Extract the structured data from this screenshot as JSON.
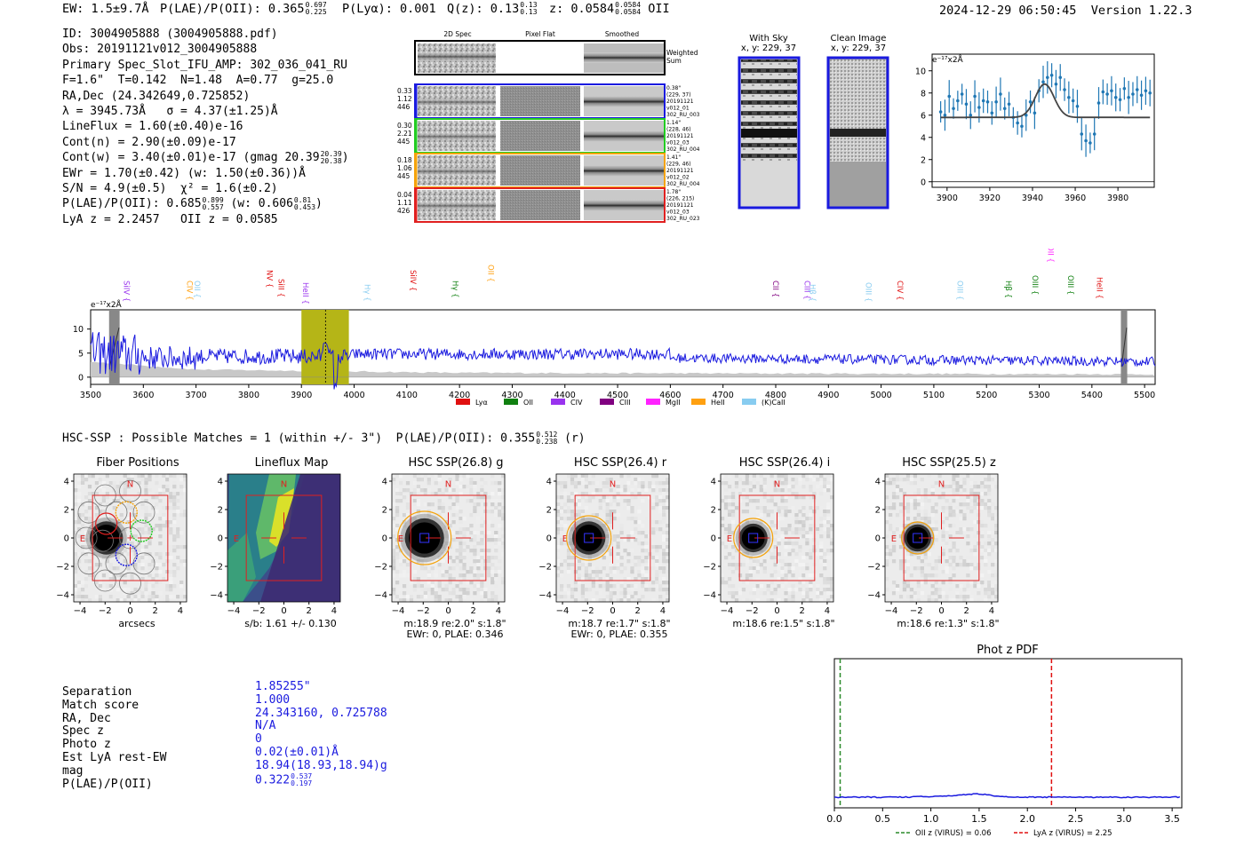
{
  "header": {
    "ew": "EW: 1.5±9.7Å",
    "plae_label": "P(LAE)/P(OII): 0.365",
    "plae_sup": "0.697",
    "plae_sub": "0.225",
    "plya": "P(Lyα): 0.001",
    "qz_label": "Q(z): 0.13",
    "qz_sup": "0.13",
    "qz_sub": "0.13",
    "z_label": "z: 0.0584",
    "z_sup": "0.0584",
    "z_sub": "0.0584",
    "z_line": "OII",
    "timestamp": "2024-12-29 06:50:45",
    "version": "Version 1.22.3"
  },
  "info": {
    "l1": "ID: 3004905888 (3004905888.pdf)",
    "l2": "Obs: 20191121v012_3004905888",
    "l3": "Primary Spec_Slot_IFU_AMP: 302_036_041_RU",
    "l4": "F=1.6\"  T=0.142  N=1.48  A=0.77  g=25.0",
    "l5": "RA,Dec (24.342649,0.725852)",
    "l6": "λ = 3945.73Å   σ = 4.37(±1.25)Å",
    "l7": "LineFlux = 1.60(±0.40)e-16",
    "l8": "Cont(n) = 2.90(±0.09)e-17",
    "l9": "Cont(w) = 3.40(±0.01)e-17 (gmag 20.39",
    "l9_sup": "20.39",
    "l9_sub": "20.38",
    "l9_end": ")",
    "l10": "EWr = 1.70(±0.42) (w: 1.50(±0.36))Å",
    "l11": "S/N = 4.9(±0.5)  χ² = 1.6(±0.2)",
    "l12": "P(LAE)/P(OII): 0.685",
    "l12_sup": "0.899",
    "l12_sub": "0.557",
    "l12_mid": " (w: 0.606",
    "l12_sup2": "0.81",
    "l12_sub2": "0.453",
    "l12_end": ")",
    "l13": "LyA z = 2.2457   OII z = 0.0585"
  },
  "cutouts": {
    "col_titles": [
      "2D Spec",
      "Pixel Flat",
      "Smoothed"
    ],
    "weighted_sum": "Weighted Sum",
    "rows": [
      {
        "left": [
          "0.33",
          "1.12",
          "446"
        ],
        "right": [
          "0.38\"",
          "(229, 37)",
          "20191121",
          "v012_01",
          "302_RU_003"
        ],
        "color": "#1a1adf"
      },
      {
        "left": [
          "0.30",
          "2.21",
          "445"
        ],
        "right": [
          "1.14\"",
          "(228, 46)",
          "20191121",
          "v012_03",
          "302_RU_004"
        ],
        "color": "#22cc22"
      },
      {
        "left": [
          "0.18",
          "1.06",
          "445"
        ],
        "right": [
          "1.41\"",
          "(229, 46)",
          "20191121",
          "v012_02",
          "302_RU_004"
        ],
        "color": "#f4a30c"
      },
      {
        "left": [
          "0.04",
          "1.11",
          "426"
        ],
        "right": [
          "1.78\"",
          "(226, 215)",
          "20191121",
          "v012_03",
          "302_RU_023"
        ],
        "color": "#e02020"
      }
    ]
  },
  "sky": {
    "with_sky_title": "With Sky",
    "with_sky_xy": "x, y: 229, 37",
    "clean_title": "Clean Image",
    "clean_xy": "x, y: 229, 37"
  },
  "zoom_plot": {
    "ylabel": "e⁻¹⁷x2Å",
    "xticks": [
      "3900",
      "3920",
      "3940",
      "3960",
      "3980"
    ],
    "yticks": [
      "0",
      "2",
      "4",
      "6",
      "8",
      "10"
    ]
  },
  "full_spec": {
    "ylabel": "e⁻¹⁷x2Å",
    "xticks": [
      "3500",
      "3600",
      "3700",
      "3800",
      "3900",
      "4000",
      "4100",
      "4200",
      "4300",
      "4400",
      "4500",
      "4600",
      "4700",
      "4800",
      "4900",
      "5000",
      "5100",
      "5200",
      "5300",
      "5400",
      "5500"
    ],
    "yticks": [
      "0",
      "5",
      "10"
    ],
    "legend": [
      {
        "label": "Lyα",
        "color": "#e01010"
      },
      {
        "label": "OII",
        "color": "#108010"
      },
      {
        "label": "CIV",
        "color": "#9933ee"
      },
      {
        "label": "CIII",
        "color": "#800080"
      },
      {
        "label": "MgII",
        "color": "#ff22ff"
      },
      {
        "label": "HeII",
        "color": "#ffa010"
      },
      {
        "label": "(K)CaII",
        "color": "#88ccf0"
      }
    ],
    "lines": [
      {
        "label": "SiIV",
        "color": "#9933ee"
      },
      {
        "label": "CIV",
        "color": "#ffa010"
      },
      {
        "label": "OII",
        "color": "#88ccf0"
      },
      {
        "label": "NV",
        "color": "#e01010"
      },
      {
        "label": "SiII",
        "color": "#e01010"
      },
      {
        "label": "HeII",
        "color": "#9933ee"
      },
      {
        "label": "Hγ",
        "color": "#88ccf0"
      },
      {
        "label": "SiIV",
        "color": "#e01010"
      },
      {
        "label": "Hγ",
        "color": "#108010"
      },
      {
        "label": "OII",
        "color": "#ffa010"
      },
      {
        "label": "CII",
        "color": "#800080"
      },
      {
        "label": "CIII",
        "color": "#9933ee"
      },
      {
        "label": "Hβ",
        "color": "#88ccf0"
      },
      {
        "label": "OIII",
        "color": "#88ccf0"
      },
      {
        "label": "CIV",
        "color": "#e01010"
      },
      {
        "label": "OIII",
        "color": "#88ccf0"
      },
      {
        "label": "Hβ",
        "color": "#108010"
      },
      {
        "label": "OIII",
        "color": "#108010"
      },
      {
        "label": "OII",
        "color": "#ff22ff"
      },
      {
        "label": "OIII",
        "color": "#108010"
      },
      {
        "label": "HeII",
        "color": "#e01010"
      }
    ]
  },
  "hsc": {
    "title": "HSC-SSP : Possible Matches = 1 (within +/- 3\")  P(LAE)/P(OII): 0.355",
    "title_sup": "0.512",
    "title_sub": "0.238",
    "title_end": "(r)",
    "panels": [
      {
        "title": "Fiber Positions",
        "sub1": "arcsecs",
        "sub2": ""
      },
      {
        "title": "Lineflux Map",
        "sub1": "s/b: 1.61 +/- 0.130",
        "sub2": ""
      },
      {
        "title": "HSC SSP(26.8) g",
        "sub1": "m:18.9  re:2.0\"  s:1.8\"",
        "sub2": "EWr: 0, PLAE: 0.346"
      },
      {
        "title": "HSC SSP(26.4) r",
        "sub1": "m:18.7  re:1.7\"  s:1.8\"",
        "sub2": "EWr: 0, PLAE: 0.355"
      },
      {
        "title": "HSC SSP(26.4) i",
        "sub1": "m:18.6  re:1.5\"  s:1.8\"",
        "sub2": ""
      },
      {
        "title": "HSC SSP(25.5) z",
        "sub1": "m:18.6  re:1.3\"  s:1.8\"",
        "sub2": ""
      }
    ],
    "ticks": [
      "−4",
      "−2",
      "0",
      "2",
      "4"
    ],
    "n_label": "N",
    "e_label": "E"
  },
  "match": {
    "labels": [
      "Separation",
      "Match score",
      "RA, Dec",
      "Spec z",
      "Photo z",
      "Est LyA rest-EW",
      "mag",
      "P(LAE)/P(OII)"
    ],
    "values": [
      "1.85255\"",
      "1.000",
      "24.343160, 0.725788",
      "N/A",
      "0",
      "0.02(±0.01)Å",
      "18.94(18.93,18.94)g",
      "0.322"
    ],
    "plae_sup": "0.537",
    "plae_sub": "0.197"
  },
  "photz": {
    "title": "Phot z PDF",
    "xticks": [
      "0.0",
      "0.5",
      "1.0",
      "1.5",
      "2.0",
      "2.5",
      "3.0",
      "3.5"
    ],
    "legend_oii": "OII z (VIRUS) = 0.06",
    "legend_lya": "LyA z (VIRUS) = 2.25",
    "oii_color": "#2a8a2a",
    "lya_color": "#e01010"
  },
  "chart_data": [
    {
      "type": "scatter",
      "title": "",
      "xlabel": "",
      "ylabel": "e-17 x2Å",
      "xlim": [
        3893,
        3997
      ],
      "ylim": [
        -0.5,
        11.5
      ],
      "series": [
        {
          "name": "data",
          "x": [
            3897,
            3899,
            3901,
            3903,
            3905,
            3907,
            3909,
            3911,
            3913,
            3915,
            3917,
            3919,
            3921,
            3923,
            3925,
            3927,
            3929,
            3931,
            3933,
            3935,
            3937,
            3939,
            3941,
            3943,
            3945,
            3947,
            3949,
            3951,
            3953,
            3955,
            3957,
            3959,
            3961,
            3963,
            3965,
            3967,
            3969,
            3971,
            3973,
            3975,
            3977,
            3979,
            3981,
            3983,
            3985,
            3987,
            3989,
            3991,
            3993,
            3995
          ],
          "y": [
            6.3,
            6.0,
            7.7,
            6.6,
            7.3,
            7.9,
            7.0,
            6.0,
            7.7,
            6.7,
            7.3,
            7.2,
            6.2,
            7.2,
            7.9,
            6.6,
            7.0,
            5.8,
            5.3,
            5.0,
            6.0,
            7.2,
            6.2,
            8.2,
            9.0,
            9.4,
            9.6,
            8.8,
            9.4,
            8.3,
            7.6,
            7.3,
            6.8,
            4.3,
            3.7,
            3.5,
            4.3,
            7.1,
            8.1,
            7.9,
            8.2,
            7.6,
            7.4,
            8.4,
            7.6,
            7.9,
            8.3,
            7.8,
            8.2,
            8.0
          ]
        },
        {
          "name": "fit",
          "x": [
            3897,
            3930,
            3935,
            3940,
            3945,
            3948,
            3950,
            3955,
            3960,
            3995
          ],
          "y": [
            5.8,
            5.8,
            6.1,
            7.5,
            8.7,
            8.6,
            8.0,
            6.4,
            5.8,
            5.8
          ]
        }
      ]
    },
    {
      "type": "line",
      "title": "",
      "xlabel": "",
      "ylabel": "e-17 x2Å",
      "xlim": [
        3500,
        5520
      ],
      "ylim": [
        -1.5,
        14
      ],
      "highlight_range": [
        3900,
        3990
      ],
      "marker_x": 3945.73,
      "series": [
        {
          "name": "spectrum",
          "description": "noisy continuum ~3-5, dip at 3960"
        }
      ]
    },
    {
      "type": "line",
      "title": "Phot z PDF",
      "xlim": [
        0,
        3.6
      ],
      "vlines": [
        {
          "x": 0.06,
          "label": "OII z (VIRUS) = 0.06"
        },
        {
          "x": 2.25,
          "label": "LyA z (VIRUS) = 2.25"
        }
      ],
      "series": [
        {
          "name": "pdf",
          "x": [
            0,
            1.2,
            1.4,
            1.5,
            1.6,
            1.8,
            3.6
          ],
          "y": [
            0,
            0.01,
            0.03,
            0.05,
            0.03,
            0.01,
            0
          ]
        }
      ]
    }
  ]
}
